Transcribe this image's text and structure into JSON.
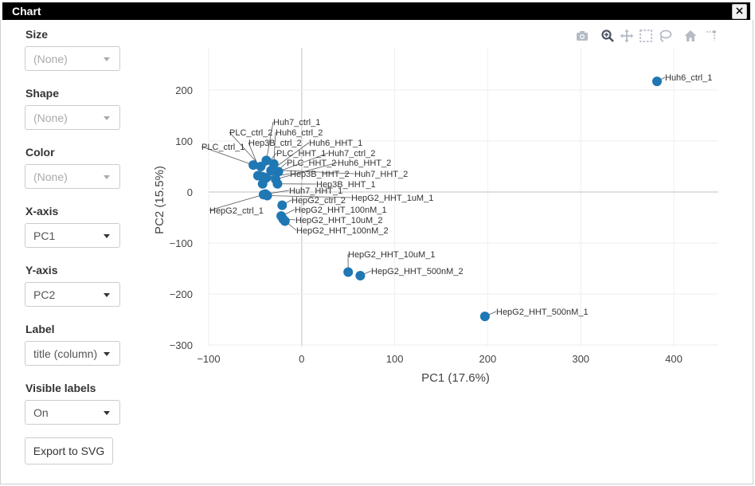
{
  "window": {
    "title": "Chart",
    "close_label": "×"
  },
  "controls": {
    "size": {
      "label": "Size",
      "value": "(None)"
    },
    "shape": {
      "label": "Shape",
      "value": "(None)"
    },
    "color": {
      "label": "Color",
      "value": "(None)"
    },
    "xaxis": {
      "label": "X-axis",
      "value": "PC1"
    },
    "yaxis": {
      "label": "Y-axis",
      "value": "PC2"
    },
    "label": {
      "label": "Label",
      "value": "title (column)"
    },
    "visible_labels": {
      "label": "Visible labels",
      "value": "On"
    },
    "export_label": "Export to SVG"
  },
  "modebar": [
    "camera-icon",
    "zoom-icon",
    "pan-icon",
    "box-select-icon",
    "lasso-icon",
    "home-icon",
    "spike-lines-icon"
  ],
  "chart_data": {
    "type": "scatter",
    "title": "",
    "xlabel": "PC1 (17.6%)",
    "ylabel": "PC2 (15.5%)",
    "xlim": [
      -100,
      450
    ],
    "ylim": [
      -300,
      230
    ],
    "xticks": [
      -100,
      0,
      100,
      200,
      300,
      400
    ],
    "yticks": [
      200,
      100,
      0,
      -100,
      -200,
      -300
    ],
    "grid": true,
    "marker_color": "#1f77b4",
    "points": [
      {
        "label": "Huh6_ctrl_1",
        "x": 382,
        "y": 217
      },
      {
        "label": "Huh7_ctrl_1",
        "x": -38,
        "y": 62
      },
      {
        "label": "PLC_ctrl_2",
        "x": -44,
        "y": 50
      },
      {
        "label": "Huh6_ctrl_2",
        "x": -30,
        "y": 55
      },
      {
        "label": "PLC_ctrl_1",
        "x": -52,
        "y": 53
      },
      {
        "label": "Hep3B_ctrl_2",
        "x": -42,
        "y": 30
      },
      {
        "label": "Huh6_HHT_1",
        "x": -33,
        "y": 42
      },
      {
        "label": "PLC_HHT_1",
        "x": -47,
        "y": 32
      },
      {
        "label": "Huh7_ctrl_2",
        "x": -25,
        "y": 40
      },
      {
        "label": "PLC_HHT_2",
        "x": -42,
        "y": 16
      },
      {
        "label": "Huh6_HHT_2",
        "x": -28,
        "y": 25
      },
      {
        "label": "Hep3B_HHT_2",
        "x": -38,
        "y": 28
      },
      {
        "label": "Huh7_HHT_2",
        "x": -30,
        "y": 43
      },
      {
        "label": "Hep3B_HHT_1",
        "x": -26,
        "y": 16
      },
      {
        "label": "Huh7_HHT_1",
        "x": -39,
        "y": -4
      },
      {
        "label": "HepG2_HHT_1uM_1",
        "x": -37,
        "y": -7
      },
      {
        "label": "HepG2_ctrl_1",
        "x": -41,
        "y": -5
      },
      {
        "label": "HepG2_ctrl_2",
        "x": -21,
        "y": -26
      },
      {
        "label": "HepG2_HHT_100nM_1",
        "x": -22,
        "y": -47
      },
      {
        "label": "HepG2_HHT_10uM_2",
        "x": -20,
        "y": -53
      },
      {
        "label": "HepG2_HHT_100nM_2",
        "x": -18,
        "y": -57
      },
      {
        "label": "HepG2_HHT_10uM_1",
        "x": 50,
        "y": -157
      },
      {
        "label": "HepG2_HHT_500nM_2",
        "x": 63,
        "y": -164
      },
      {
        "label": "HepG2_HHT_500nM_1",
        "x": 197,
        "y": -244
      }
    ]
  }
}
